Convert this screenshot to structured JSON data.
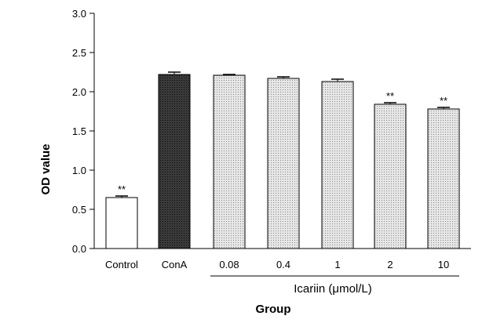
{
  "chart_data": {
    "type": "bar",
    "xlabel": "Group",
    "ylabel": "OD value",
    "ylim": [
      0,
      3.0
    ],
    "yticks": [
      "0.0",
      "0.5",
      "1.0",
      "1.5",
      "2.0",
      "2.5",
      "3.0"
    ],
    "categories": [
      "Control",
      "ConA",
      "0.08",
      "0.4",
      "1",
      "2",
      "10"
    ],
    "values": [
      0.65,
      2.22,
      2.21,
      2.17,
      2.13,
      1.84,
      1.78
    ],
    "errors": [
      0.02,
      0.03,
      0.01,
      0.02,
      0.03,
      0.02,
      0.02
    ],
    "annotations": [
      "**",
      "",
      "",
      "",
      "",
      "**",
      "**"
    ],
    "fills": [
      "white",
      "dark",
      "dotted",
      "dotted",
      "dotted",
      "dotted",
      "dotted"
    ],
    "group_label": "Icariin (μmol/L)",
    "grid": false,
    "colors": {
      "dark": "#2b2b2b",
      "dotted": "#d9d9d9",
      "white": "#ffffff",
      "stroke": "#000000"
    }
  }
}
